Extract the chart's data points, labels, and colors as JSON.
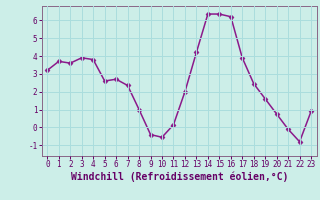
{
  "x": [
    0,
    1,
    2,
    3,
    4,
    5,
    6,
    7,
    8,
    9,
    10,
    11,
    12,
    13,
    14,
    15,
    16,
    17,
    18,
    19,
    20,
    21,
    22,
    23
  ],
  "y": [
    3.2,
    3.7,
    3.6,
    3.9,
    3.8,
    2.6,
    2.7,
    2.35,
    1.0,
    -0.4,
    -0.55,
    0.15,
    2.0,
    4.2,
    6.35,
    6.35,
    6.2,
    3.9,
    2.45,
    1.6,
    0.75,
    -0.1,
    -0.8,
    0.9
  ],
  "line_color": "#8b1a8b",
  "marker": "D",
  "marker_size": 2.5,
  "bg_color": "#cceee8",
  "grid_color": "#aadddd",
  "xlabel": "Windchill (Refroidissement éolien,°C)",
  "xlabel_color": "#660066",
  "xlabel_fontsize": 7,
  "xlim": [
    -0.5,
    23.5
  ],
  "ylim": [
    -1.6,
    6.8
  ],
  "yticks": [
    -1,
    0,
    1,
    2,
    3,
    4,
    5,
    6
  ],
  "xticks": [
    0,
    1,
    2,
    3,
    4,
    5,
    6,
    7,
    8,
    9,
    10,
    11,
    12,
    13,
    14,
    15,
    16,
    17,
    18,
    19,
    20,
    21,
    22,
    23
  ],
  "tick_color": "#660066",
  "tick_fontsize": 5.5,
  "spine_color": "#886688",
  "linewidth": 1.1
}
